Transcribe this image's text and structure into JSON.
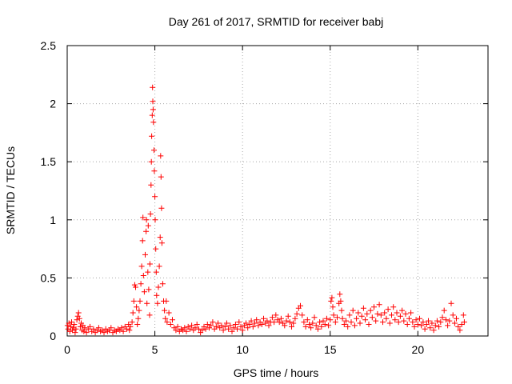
{
  "chart_data": {
    "type": "scatter",
    "title": "Day 261 of 2017, SRMTID for receiver babj",
    "xlabel": "GPS time / hours",
    "ylabel": "SRMTID / TECUs",
    "xlim": [
      0,
      24
    ],
    "ylim": [
      0,
      2.5
    ],
    "xticks": [
      0,
      5,
      10,
      15,
      20
    ],
    "yticks": [
      0,
      0.5,
      1,
      1.5,
      2,
      2.5
    ],
    "xtick_labels": [
      "0",
      "5",
      "10",
      "15",
      "20"
    ],
    "ytick_labels": [
      "0",
      "0.5",
      "1",
      "1.5",
      "2",
      "2.5"
    ],
    "grid": true,
    "marker": "+",
    "series": [
      {
        "name": "SRMTID",
        "color": "#ff0000",
        "points": [
          [
            0.02,
            0.09
          ],
          [
            0.05,
            0.06
          ],
          [
            0.1,
            0.11
          ],
          [
            0.15,
            0.04
          ],
          [
            0.2,
            0.08
          ],
          [
            0.25,
            0.12
          ],
          [
            0.3,
            0.05
          ],
          [
            0.35,
            0.07
          ],
          [
            0.4,
            0.1
          ],
          [
            0.45,
            0.03
          ],
          [
            0.5,
            0.06
          ],
          [
            0.55,
            0.14
          ],
          [
            0.6,
            0.17
          ],
          [
            0.65,
            0.2
          ],
          [
            0.7,
            0.15
          ],
          [
            0.75,
            0.08
          ],
          [
            0.8,
            0.11
          ],
          [
            0.85,
            0.05
          ],
          [
            0.9,
            0.09
          ],
          [
            0.95,
            0.04
          ],
          [
            1.0,
            0.07
          ],
          [
            1.1,
            0.03
          ],
          [
            1.2,
            0.06
          ],
          [
            1.3,
            0.08
          ],
          [
            1.4,
            0.04
          ],
          [
            1.5,
            0.06
          ],
          [
            1.6,
            0.03
          ],
          [
            1.7,
            0.05
          ],
          [
            1.8,
            0.07
          ],
          [
            1.9,
            0.04
          ],
          [
            2.0,
            0.05
          ],
          [
            2.1,
            0.03
          ],
          [
            2.2,
            0.06
          ],
          [
            2.3,
            0.04
          ],
          [
            2.4,
            0.05
          ],
          [
            2.5,
            0.07
          ],
          [
            2.6,
            0.03
          ],
          [
            2.7,
            0.05
          ],
          [
            2.8,
            0.04
          ],
          [
            2.9,
            0.06
          ],
          [
            3.0,
            0.05
          ],
          [
            3.1,
            0.07
          ],
          [
            3.2,
            0.04
          ],
          [
            3.3,
            0.08
          ],
          [
            3.4,
            0.06
          ],
          [
            3.5,
            0.1
          ],
          [
            3.55,
            0.05
          ],
          [
            3.6,
            0.08
          ],
          [
            3.7,
            0.12
          ],
          [
            3.75,
            0.2
          ],
          [
            3.8,
            0.3
          ],
          [
            3.85,
            0.44
          ],
          [
            3.9,
            0.42
          ],
          [
            3.95,
            0.25
          ],
          [
            4.0,
            0.1
          ],
          [
            4.05,
            0.15
          ],
          [
            4.1,
            0.22
          ],
          [
            4.15,
            0.3
          ],
          [
            4.2,
            0.45
          ],
          [
            4.25,
            0.6
          ],
          [
            4.3,
            0.82
          ],
          [
            4.32,
            1.02
          ],
          [
            4.35,
            0.52
          ],
          [
            4.4,
            0.38
          ],
          [
            4.45,
            0.7
          ],
          [
            4.5,
            0.9
          ],
          [
            4.52,
            1.0
          ],
          [
            4.55,
            0.28
          ],
          [
            4.6,
            0.55
          ],
          [
            4.62,
            0.95
          ],
          [
            4.65,
            0.4
          ],
          [
            4.7,
            0.18
          ],
          [
            4.72,
            0.62
          ],
          [
            4.75,
            1.05
          ],
          [
            4.78,
            1.3
          ],
          [
            4.8,
            1.5
          ],
          [
            4.82,
            1.72
          ],
          [
            4.85,
            1.9
          ],
          [
            4.87,
            2.14
          ],
          [
            4.88,
            2.02
          ],
          [
            4.9,
            1.95
          ],
          [
            4.92,
            1.84
          ],
          [
            4.95,
            1.6
          ],
          [
            4.97,
            1.42
          ],
          [
            5.0,
            1.2
          ],
          [
            5.02,
            1.0
          ],
          [
            5.05,
            0.75
          ],
          [
            5.08,
            0.55
          ],
          [
            5.1,
            0.35
          ],
          [
            5.15,
            0.28
          ],
          [
            5.2,
            0.42
          ],
          [
            5.25,
            0.6
          ],
          [
            5.3,
            0.85
          ],
          [
            5.33,
            1.55
          ],
          [
            5.35,
            1.37
          ],
          [
            5.38,
            1.1
          ],
          [
            5.4,
            0.8
          ],
          [
            5.45,
            0.45
          ],
          [
            5.5,
            0.3
          ],
          [
            5.55,
            0.22
          ],
          [
            5.6,
            0.15
          ],
          [
            5.65,
            0.3
          ],
          [
            5.7,
            0.12
          ],
          [
            5.8,
            0.2
          ],
          [
            5.9,
            0.1
          ],
          [
            6.0,
            0.14
          ],
          [
            6.1,
            0.07
          ],
          [
            6.2,
            0.05
          ],
          [
            6.3,
            0.08
          ],
          [
            6.4,
            0.04
          ],
          [
            6.5,
            0.06
          ],
          [
            6.6,
            0.05
          ],
          [
            6.7,
            0.07
          ],
          [
            6.8,
            0.04
          ],
          [
            6.9,
            0.08
          ],
          [
            7.0,
            0.06
          ],
          [
            7.1,
            0.09
          ],
          [
            7.2,
            0.05
          ],
          [
            7.3,
            0.07
          ],
          [
            7.4,
            0.1
          ],
          [
            7.5,
            0.06
          ],
          [
            7.6,
            0.03
          ],
          [
            7.7,
            0.05
          ],
          [
            7.8,
            0.08
          ],
          [
            7.9,
            0.06
          ],
          [
            8.0,
            0.1
          ],
          [
            8.1,
            0.07
          ],
          [
            8.2,
            0.09
          ],
          [
            8.3,
            0.12
          ],
          [
            8.4,
            0.06
          ],
          [
            8.5,
            0.08
          ],
          [
            8.6,
            0.11
          ],
          [
            8.7,
            0.07
          ],
          [
            8.8,
            0.09
          ],
          [
            8.9,
            0.05
          ],
          [
            9.0,
            0.08
          ],
          [
            9.1,
            0.11
          ],
          [
            9.2,
            0.06
          ],
          [
            9.3,
            0.09
          ],
          [
            9.4,
            0.04
          ],
          [
            9.5,
            0.07
          ],
          [
            9.6,
            0.1
          ],
          [
            9.7,
            0.06
          ],
          [
            9.8,
            0.12
          ],
          [
            9.9,
            0.08
          ],
          [
            10.0,
            0.05
          ],
          [
            10.1,
            0.09
          ],
          [
            10.2,
            0.11
          ],
          [
            10.3,
            0.07
          ],
          [
            10.4,
            0.1
          ],
          [
            10.5,
            0.13
          ],
          [
            10.6,
            0.08
          ],
          [
            10.7,
            0.11
          ],
          [
            10.8,
            0.14
          ],
          [
            10.9,
            0.09
          ],
          [
            11.0,
            0.12
          ],
          [
            11.1,
            0.1
          ],
          [
            11.2,
            0.15
          ],
          [
            11.3,
            0.11
          ],
          [
            11.4,
            0.13
          ],
          [
            11.5,
            0.09
          ],
          [
            11.6,
            0.12
          ],
          [
            11.7,
            0.16
          ],
          [
            11.8,
            0.12
          ],
          [
            11.9,
            0.18
          ],
          [
            12.0,
            0.14
          ],
          [
            12.1,
            0.12
          ],
          [
            12.2,
            0.15
          ],
          [
            12.3,
            0.11
          ],
          [
            12.4,
            0.09
          ],
          [
            12.5,
            0.13
          ],
          [
            12.6,
            0.17
          ],
          [
            12.7,
            0.12
          ],
          [
            12.8,
            0.08
          ],
          [
            12.9,
            0.11
          ],
          [
            13.0,
            0.15
          ],
          [
            13.1,
            0.19
          ],
          [
            13.2,
            0.24
          ],
          [
            13.3,
            0.26
          ],
          [
            13.4,
            0.18
          ],
          [
            13.5,
            0.12
          ],
          [
            13.6,
            0.08
          ],
          [
            13.7,
            0.14
          ],
          [
            13.8,
            0.1
          ],
          [
            13.9,
            0.07
          ],
          [
            14.0,
            0.11
          ],
          [
            14.1,
            0.16
          ],
          [
            14.2,
            0.09
          ],
          [
            14.3,
            0.06
          ],
          [
            14.4,
            0.12
          ],
          [
            14.5,
            0.08
          ],
          [
            14.6,
            0.13
          ],
          [
            14.7,
            0.1
          ],
          [
            14.8,
            0.15
          ],
          [
            14.9,
            0.09
          ],
          [
            15.0,
            0.14
          ],
          [
            15.05,
            0.3
          ],
          [
            15.1,
            0.33
          ],
          [
            15.15,
            0.25
          ],
          [
            15.2,
            0.18
          ],
          [
            15.3,
            0.12
          ],
          [
            15.4,
            0.16
          ],
          [
            15.5,
            0.28
          ],
          [
            15.55,
            0.36
          ],
          [
            15.6,
            0.3
          ],
          [
            15.65,
            0.22
          ],
          [
            15.7,
            0.15
          ],
          [
            15.8,
            0.1
          ],
          [
            15.9,
            0.13
          ],
          [
            16.0,
            0.08
          ],
          [
            16.1,
            0.18
          ],
          [
            16.2,
            0.12
          ],
          [
            16.3,
            0.22
          ],
          [
            16.4,
            0.09
          ],
          [
            16.5,
            0.15
          ],
          [
            16.6,
            0.2
          ],
          [
            16.7,
            0.11
          ],
          [
            16.8,
            0.17
          ],
          [
            16.9,
            0.24
          ],
          [
            17.0,
            0.14
          ],
          [
            17.1,
            0.19
          ],
          [
            17.2,
            0.1
          ],
          [
            17.3,
            0.22
          ],
          [
            17.4,
            0.16
          ],
          [
            17.5,
            0.25
          ],
          [
            17.6,
            0.13
          ],
          [
            17.7,
            0.19
          ],
          [
            17.8,
            0.27
          ],
          [
            17.9,
            0.18
          ],
          [
            18.0,
            0.12
          ],
          [
            18.1,
            0.2
          ],
          [
            18.2,
            0.15
          ],
          [
            18.3,
            0.23
          ],
          [
            18.4,
            0.11
          ],
          [
            18.5,
            0.18
          ],
          [
            18.6,
            0.25
          ],
          [
            18.7,
            0.14
          ],
          [
            18.8,
            0.2
          ],
          [
            18.9,
            0.12
          ],
          [
            19.0,
            0.17
          ],
          [
            19.1,
            0.22
          ],
          [
            19.2,
            0.13
          ],
          [
            19.3,
            0.19
          ],
          [
            19.4,
            0.1
          ],
          [
            19.5,
            0.15
          ],
          [
            19.6,
            0.2
          ],
          [
            19.7,
            0.12
          ],
          [
            19.8,
            0.08
          ],
          [
            19.9,
            0.14
          ],
          [
            20.0,
            0.1
          ],
          [
            20.1,
            0.15
          ],
          [
            20.2,
            0.09
          ],
          [
            20.3,
            0.12
          ],
          [
            20.4,
            0.06
          ],
          [
            20.5,
            0.1
          ],
          [
            20.6,
            0.13
          ],
          [
            20.7,
            0.07
          ],
          [
            20.8,
            0.11
          ],
          [
            20.9,
            0.05
          ],
          [
            21.0,
            0.09
          ],
          [
            21.1,
            0.13
          ],
          [
            21.2,
            0.08
          ],
          [
            21.3,
            0.12
          ],
          [
            21.4,
            0.16
          ],
          [
            21.5,
            0.22
          ],
          [
            21.6,
            0.14
          ],
          [
            21.7,
            0.09
          ],
          [
            21.8,
            0.13
          ],
          [
            21.9,
            0.28
          ],
          [
            22.0,
            0.18
          ],
          [
            22.1,
            0.11
          ],
          [
            22.2,
            0.15
          ],
          [
            22.3,
            0.08
          ],
          [
            22.4,
            0.05
          ],
          [
            22.5,
            0.1
          ],
          [
            22.6,
            0.18
          ],
          [
            22.65,
            0.12
          ]
        ]
      }
    ]
  }
}
